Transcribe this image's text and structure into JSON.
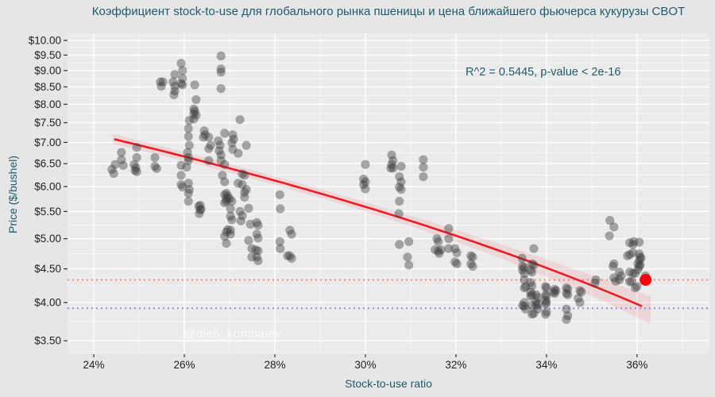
{
  "title": "Коэффициент stock-to-use для глобального рынка пшеницы и цена ближайшего фьючерса кукурузы CBOT",
  "annotation": "R^2 = 0.5445, p-value < 2e-16",
  "watermark": "@oleh_kombaiev",
  "colors": {
    "outer_bg": "#e6e6e6",
    "panel_bg": "#ebebeb",
    "grid_major": "#ffffff",
    "grid_minor": "#f6f6f6",
    "title_text": "#1d5b6e",
    "tick_label": "#1f1f1f",
    "point": "#3c3c3c",
    "trend_line": "#ec1c24",
    "conf_band": "rgba(235,105,120,0.17)",
    "hline_red": "#f47070",
    "hline_blue": "#8080d8",
    "highlight_point": "#fb0007"
  },
  "chart_data": {
    "type": "scatter",
    "title": "Коэффициент stock-to-use для глобального рынка пшеницы и цена ближайшего фьючерса кукурузы CBOT",
    "xlabel": "Stock-to-use ratio",
    "ylabel": "Price ($/bushel)",
    "y_scale": "log10",
    "xlim": [
      23.42,
      37.6
    ],
    "ylim": [
      3.34,
      10.25
    ],
    "grid": "white major and minor gridlines on gray panel",
    "legend": "none",
    "r_squared": 0.5445,
    "p_value": "< 2e-16",
    "x_ticks": [
      {
        "v": 24,
        "label": "24%"
      },
      {
        "v": 26,
        "label": "26%"
      },
      {
        "v": 28,
        "label": "28%"
      },
      {
        "v": 30,
        "label": "30%"
      },
      {
        "v": 32,
        "label": "32%"
      },
      {
        "v": 34,
        "label": "34%"
      },
      {
        "v": 36,
        "label": "36%"
      }
    ],
    "y_ticks": [
      {
        "v": 3.5,
        "label": "$3.50"
      },
      {
        "v": 4.0,
        "label": "$4.00"
      },
      {
        "v": 4.5,
        "label": "$4.50"
      },
      {
        "v": 5.0,
        "label": "$5.00"
      },
      {
        "v": 5.5,
        "label": "$5.50"
      },
      {
        "v": 6.0,
        "label": "$6.00"
      },
      {
        "v": 6.5,
        "label": "$6.50"
      },
      {
        "v": 7.0,
        "label": "$7.00"
      },
      {
        "v": 7.5,
        "label": "$7.50"
      },
      {
        "v": 8.0,
        "label": "$8.00"
      },
      {
        "v": 8.5,
        "label": "$8.50"
      },
      {
        "v": 9.0,
        "label": "$9.00"
      },
      {
        "v": 9.5,
        "label": "$9.50"
      },
      {
        "v": 10.0,
        "label": "$10.00"
      }
    ],
    "hlines": [
      {
        "y": 4.33,
        "style": "dotted",
        "color_key": "hline_red"
      },
      {
        "y": 3.92,
        "style": "dotted",
        "color_key": "hline_blue"
      }
    ],
    "trend": {
      "kind": "linear-regression",
      "x0": 24.45,
      "p0": 7.08,
      "x1": 36.18,
      "p1": 3.93,
      "band_x0": 24.42,
      "band_x1": 36.3,
      "band_h0": 0.09,
      "band_hq": 0.0018,
      "band_hc": 29.0
    },
    "highlight_point": {
      "x": 36.19,
      "y": 4.33
    },
    "points": [
      [
        24.4,
        6.37
      ],
      [
        24.44,
        6.28
      ],
      [
        24.47,
        6.48
      ],
      [
        24.61,
        6.76
      ],
      [
        24.61,
        6.59
      ],
      [
        24.65,
        6.46
      ],
      [
        24.89,
        6.48
      ],
      [
        24.93,
        6.41
      ],
      [
        24.95,
        6.32
      ],
      [
        24.95,
        6.88
      ],
      [
        24.95,
        6.64
      ],
      [
        24.91,
        6.35
      ],
      [
        25.35,
        6.64
      ],
      [
        25.35,
        6.44
      ],
      [
        25.39,
        6.39
      ],
      [
        25.47,
        8.65
      ],
      [
        25.53,
        8.65
      ],
      [
        25.49,
        8.52
      ],
      [
        25.75,
        8.65
      ],
      [
        25.79,
        8.88
      ],
      [
        25.79,
        8.52
      ],
      [
        25.79,
        8.38
      ],
      [
        25.77,
        8.27
      ],
      [
        25.93,
        9.23
      ],
      [
        25.96,
        9.0
      ],
      [
        25.96,
        8.76
      ],
      [
        25.93,
        8.6
      ],
      [
        25.96,
        8.56
      ],
      [
        26.23,
        8.56
      ],
      [
        26.26,
        8.13
      ],
      [
        26.21,
        7.87
      ],
      [
        26.23,
        7.81
      ],
      [
        26.21,
        7.74
      ],
      [
        26.26,
        7.7
      ],
      [
        26.21,
        7.6
      ],
      [
        26.11,
        7.56
      ],
      [
        26.09,
        7.35
      ],
      [
        26.09,
        7.15
      ],
      [
        26.11,
        6.93
      ],
      [
        26.07,
        6.76
      ],
      [
        26.09,
        6.57
      ],
      [
        25.93,
        6.46
      ],
      [
        26.09,
        6.64
      ],
      [
        26.05,
        6.42
      ],
      [
        25.93,
        6.24
      ],
      [
        25.93,
        6.04
      ],
      [
        25.96,
        5.99
      ],
      [
        26.09,
        6.07
      ],
      [
        26.11,
        5.94
      ],
      [
        26.09,
        5.86
      ],
      [
        26.09,
        5.7
      ],
      [
        26.32,
        5.6
      ],
      [
        26.35,
        5.53
      ],
      [
        26.33,
        5.46
      ],
      [
        26.35,
        5.62
      ],
      [
        26.37,
        5.54
      ],
      [
        26.44,
        7.29
      ],
      [
        26.46,
        7.19
      ],
      [
        26.42,
        7.13
      ],
      [
        26.54,
        7.13
      ],
      [
        26.58,
        6.93
      ],
      [
        26.54,
        6.85
      ],
      [
        26.54,
        6.57
      ],
      [
        26.81,
        9.47
      ],
      [
        26.81,
        9.05
      ],
      [
        26.81,
        8.95
      ],
      [
        26.81,
        8.45
      ],
      [
        26.75,
        7.04
      ],
      [
        26.79,
        6.93
      ],
      [
        26.77,
        6.8
      ],
      [
        26.81,
        6.7
      ],
      [
        26.81,
        6.57
      ],
      [
        26.89,
        7.23
      ],
      [
        26.89,
        6.48
      ],
      [
        26.84,
        6.24
      ],
      [
        26.89,
        6.1
      ],
      [
        26.93,
        5.86
      ],
      [
        27.0,
        5.75
      ],
      [
        26.93,
        5.7
      ],
      [
        26.89,
        5.83
      ],
      [
        26.96,
        5.8
      ],
      [
        26.93,
        5.75
      ],
      [
        26.89,
        5.67
      ],
      [
        27.05,
        5.7
      ],
      [
        26.96,
        5.16
      ],
      [
        26.93,
        5.12
      ],
      [
        26.89,
        5.04
      ],
      [
        27.02,
        5.55
      ],
      [
        27.02,
        5.41
      ],
      [
        27.05,
        5.34
      ],
      [
        27.02,
        5.15
      ],
      [
        27.02,
        5.08
      ],
      [
        26.93,
        4.92
      ],
      [
        27.07,
        7.19
      ],
      [
        27.09,
        7.08
      ],
      [
        27.05,
        6.99
      ],
      [
        27.07,
        6.83
      ],
      [
        27.19,
        6.74
      ],
      [
        27.23,
        7.58
      ],
      [
        27.19,
        6.07
      ],
      [
        27.28,
        6.04
      ],
      [
        27.23,
        5.5
      ],
      [
        27.28,
        5.42
      ],
      [
        27.25,
        5.32
      ],
      [
        27.28,
        6.27
      ],
      [
        27.33,
        6.24
      ],
      [
        27.37,
        5.94
      ],
      [
        27.33,
        5.88
      ],
      [
        27.33,
        5.78
      ],
      [
        27.37,
        6.93
      ],
      [
        27.42,
        5.56
      ],
      [
        27.42,
        4.97
      ],
      [
        27.46,
        5.26
      ],
      [
        27.6,
        5.29
      ],
      [
        27.63,
        5.24
      ],
      [
        27.6,
        5.08
      ],
      [
        27.63,
        5.01
      ],
      [
        27.49,
        4.83
      ],
      [
        27.58,
        4.81
      ],
      [
        27.63,
        4.79
      ],
      [
        27.49,
        4.69
      ],
      [
        27.6,
        4.69
      ],
      [
        27.63,
        4.63
      ],
      [
        28.11,
        5.83
      ],
      [
        28.12,
        5.55
      ],
      [
        28.11,
        4.95
      ],
      [
        28.12,
        4.83
      ],
      [
        28.28,
        4.71
      ],
      [
        28.33,
        5.15
      ],
      [
        28.37,
        5.08
      ],
      [
        28.33,
        4.71
      ],
      [
        28.37,
        4.67
      ],
      [
        29.96,
        6.16
      ],
      [
        30.0,
        6.48
      ],
      [
        30.0,
        6.1
      ],
      [
        29.96,
        6.04
      ],
      [
        30.0,
        5.95
      ],
      [
        30.58,
        6.7
      ],
      [
        30.61,
        6.57
      ],
      [
        30.58,
        6.48
      ],
      [
        30.61,
        6.4
      ],
      [
        30.56,
        6.4
      ],
      [
        30.79,
        6.44
      ],
      [
        30.75,
        6.21
      ],
      [
        30.79,
        6.1
      ],
      [
        30.75,
        5.99
      ],
      [
        30.79,
        5.94
      ],
      [
        30.75,
        5.7
      ],
      [
        30.74,
        5.46
      ],
      [
        30.75,
        4.9
      ],
      [
        30.96,
        4.95
      ],
      [
        30.93,
        4.69
      ],
      [
        30.96,
        4.56
      ],
      [
        31.28,
        6.59
      ],
      [
        31.28,
        6.42
      ],
      [
        31.28,
        6.21
      ],
      [
        31.54,
        4.81
      ],
      [
        31.61,
        4.79
      ],
      [
        31.63,
        4.75
      ],
      [
        31.67,
        4.81
      ],
      [
        31.58,
        5.0
      ],
      [
        31.61,
        4.95
      ],
      [
        31.84,
        5.18
      ],
      [
        31.84,
        5.0
      ],
      [
        31.84,
        4.83
      ],
      [
        31.98,
        4.83
      ],
      [
        32.02,
        4.76
      ],
      [
        32.02,
        4.58
      ],
      [
        31.98,
        4.61
      ],
      [
        32.33,
        4.71
      ],
      [
        32.37,
        4.69
      ],
      [
        32.33,
        4.58
      ],
      [
        32.37,
        4.54
      ],
      [
        33.46,
        4.67
      ],
      [
        33.47,
        4.54
      ],
      [
        33.51,
        4.52
      ],
      [
        33.47,
        4.48
      ],
      [
        33.51,
        4.43
      ],
      [
        33.72,
        4.83
      ],
      [
        33.68,
        4.58
      ],
      [
        33.72,
        4.56
      ],
      [
        33.65,
        4.48
      ],
      [
        33.68,
        4.45
      ],
      [
        33.51,
        4.33
      ],
      [
        33.54,
        4.23
      ],
      [
        33.51,
        4.21
      ],
      [
        33.65,
        4.29
      ],
      [
        33.68,
        4.24
      ],
      [
        33.65,
        4.15
      ],
      [
        33.68,
        4.11
      ],
      [
        33.65,
        4.09
      ],
      [
        33.77,
        4.11
      ],
      [
        33.81,
        4.07
      ],
      [
        33.77,
        4.01
      ],
      [
        33.81,
        3.98
      ],
      [
        33.77,
        3.96
      ],
      [
        33.68,
        3.96
      ],
      [
        33.81,
        3.91
      ],
      [
        33.72,
        3.85
      ],
      [
        33.68,
        3.84
      ],
      [
        33.51,
        4.0
      ],
      [
        33.47,
        3.96
      ],
      [
        33.51,
        3.95
      ],
      [
        33.54,
        3.91
      ],
      [
        33.98,
        4.23
      ],
      [
        34.0,
        4.21
      ],
      [
        33.98,
        4.11
      ],
      [
        34.0,
        4.09
      ],
      [
        33.98,
        4.03
      ],
      [
        34.0,
        4.0
      ],
      [
        33.98,
        3.98
      ],
      [
        34.0,
        3.87
      ],
      [
        33.98,
        3.84
      ],
      [
        34.18,
        4.19
      ],
      [
        34.21,
        4.17
      ],
      [
        34.18,
        4.13
      ],
      [
        34.16,
        4.15
      ],
      [
        34.44,
        4.21
      ],
      [
        34.47,
        4.19
      ],
      [
        34.44,
        4.13
      ],
      [
        34.47,
        4.11
      ],
      [
        34.44,
        3.91
      ],
      [
        34.47,
        3.82
      ],
      [
        34.44,
        3.77
      ],
      [
        34.74,
        4.17
      ],
      [
        34.77,
        4.15
      ],
      [
        34.7,
        4.06
      ],
      [
        34.74,
        4.0
      ],
      [
        35.09,
        4.33
      ],
      [
        35.07,
        4.28
      ],
      [
        35.4,
        5.33
      ],
      [
        35.49,
        5.21
      ],
      [
        35.39,
        5.05
      ],
      [
        35.49,
        4.58
      ],
      [
        35.47,
        4.54
      ],
      [
        35.49,
        4.36
      ],
      [
        35.53,
        4.31
      ],
      [
        35.61,
        4.45
      ],
      [
        35.65,
        4.39
      ],
      [
        35.61,
        4.33
      ],
      [
        35.84,
        4.93
      ],
      [
        35.93,
        4.95
      ],
      [
        36.05,
        4.94
      ],
      [
        35.79,
        4.71
      ],
      [
        35.84,
        4.73
      ],
      [
        36.05,
        4.74
      ],
      [
        36.07,
        4.69
      ],
      [
        36.09,
        4.67
      ],
      [
        36.05,
        4.63
      ],
      [
        36.07,
        4.56
      ],
      [
        35.91,
        4.9
      ],
      [
        35.91,
        4.76
      ],
      [
        36.02,
        4.58
      ],
      [
        36.05,
        4.54
      ],
      [
        36.02,
        4.49
      ],
      [
        35.96,
        4.43
      ],
      [
        36.19,
        4.39
      ],
      [
        35.84,
        4.45
      ],
      [
        35.91,
        4.43
      ],
      [
        35.88,
        4.31
      ],
      [
        35.84,
        4.3
      ],
      [
        35.96,
        4.21
      ],
      [
        36.0,
        4.23
      ]
    ]
  }
}
